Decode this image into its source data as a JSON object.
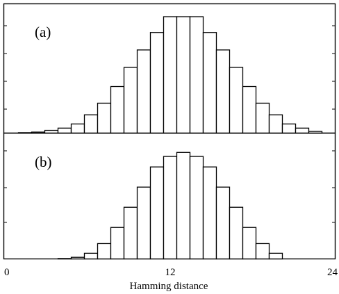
{
  "chart_data": [
    {
      "type": "bar",
      "panel_label": "(a)",
      "x": [
        1,
        2,
        3,
        4,
        5,
        6,
        7,
        8,
        9,
        10,
        11,
        12,
        13,
        14,
        15,
        16,
        17,
        18,
        19,
        20,
        21,
        22,
        23
      ],
      "values": [
        0.5,
        1.2,
        3.3,
        6,
        11,
        22,
        36,
        56,
        79,
        100,
        121,
        140,
        140,
        140,
        121,
        100,
        79,
        56,
        36,
        22,
        11,
        6,
        2
      ],
      "ylim": [
        0,
        140
      ],
      "grid": false
    },
    {
      "type": "bar",
      "panel_label": "(b)",
      "x": [
        4,
        5,
        6,
        7,
        8,
        9,
        10,
        11,
        12,
        13,
        14,
        15,
        16,
        17,
        18,
        19,
        20
      ],
      "values": [
        0.5,
        2,
        7,
        19,
        39,
        64,
        89,
        114,
        127,
        132,
        127,
        114,
        89,
        64,
        39,
        19,
        7
      ],
      "ylim": [
        0,
        140
      ],
      "grid": false
    }
  ],
  "xaxis": {
    "label": "Hamming distance",
    "ticks": [
      {
        "value": 0,
        "label": "0"
      },
      {
        "value": 12,
        "label": "12"
      },
      {
        "value": 24,
        "label": "24"
      }
    ],
    "xlim": [
      0,
      24
    ]
  }
}
